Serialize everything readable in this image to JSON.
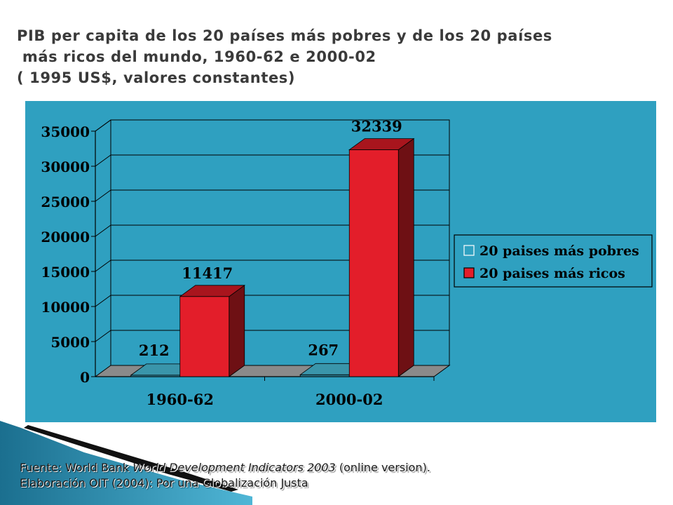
{
  "title": {
    "lines": [
      "PIB per capita de los 20 países más pobres y de los 20 países",
      " más ricos del mundo, 1960-62 e 2000-02",
      "( 1995 US$, valores constantes)"
    ]
  },
  "chart_data": {
    "type": "bar",
    "categories": [
      "1960-62",
      "2000-02"
    ],
    "series": [
      {
        "name": "20 paises más pobres",
        "values": [
          212,
          267
        ],
        "data_labels": [
          "212",
          "267"
        ]
      },
      {
        "name": "20 paises más ricos",
        "values": [
          11417,
          32339
        ],
        "data_labels": [
          "11417",
          "32339"
        ]
      }
    ],
    "y_ticks": [
      "0",
      "5000",
      "10000",
      "15000",
      "20000",
      "25000",
      "30000",
      "35000"
    ],
    "ylim": [
      0,
      35000
    ],
    "grid": true,
    "legend_position": "right",
    "colors": {
      "background": "#2fa0c0",
      "poor_front": "#2a7c90",
      "poor_top": "#3a95aa",
      "poor_side": "#1f5f6f",
      "rich_front": "#e31e2a",
      "rich_top": "#a8151d",
      "rich_side": "#6e1014",
      "floor": "#8a8a8a",
      "wall": "#2fa0c0"
    }
  },
  "source": {
    "line1_prefix": "Fuente: World Bank ",
    "line1_italic": "World Development Indicators 2003",
    "line1_suffix": " (online version).",
    "line2": "Elaboración  OIT (2004): Por una Globalización Justa"
  }
}
